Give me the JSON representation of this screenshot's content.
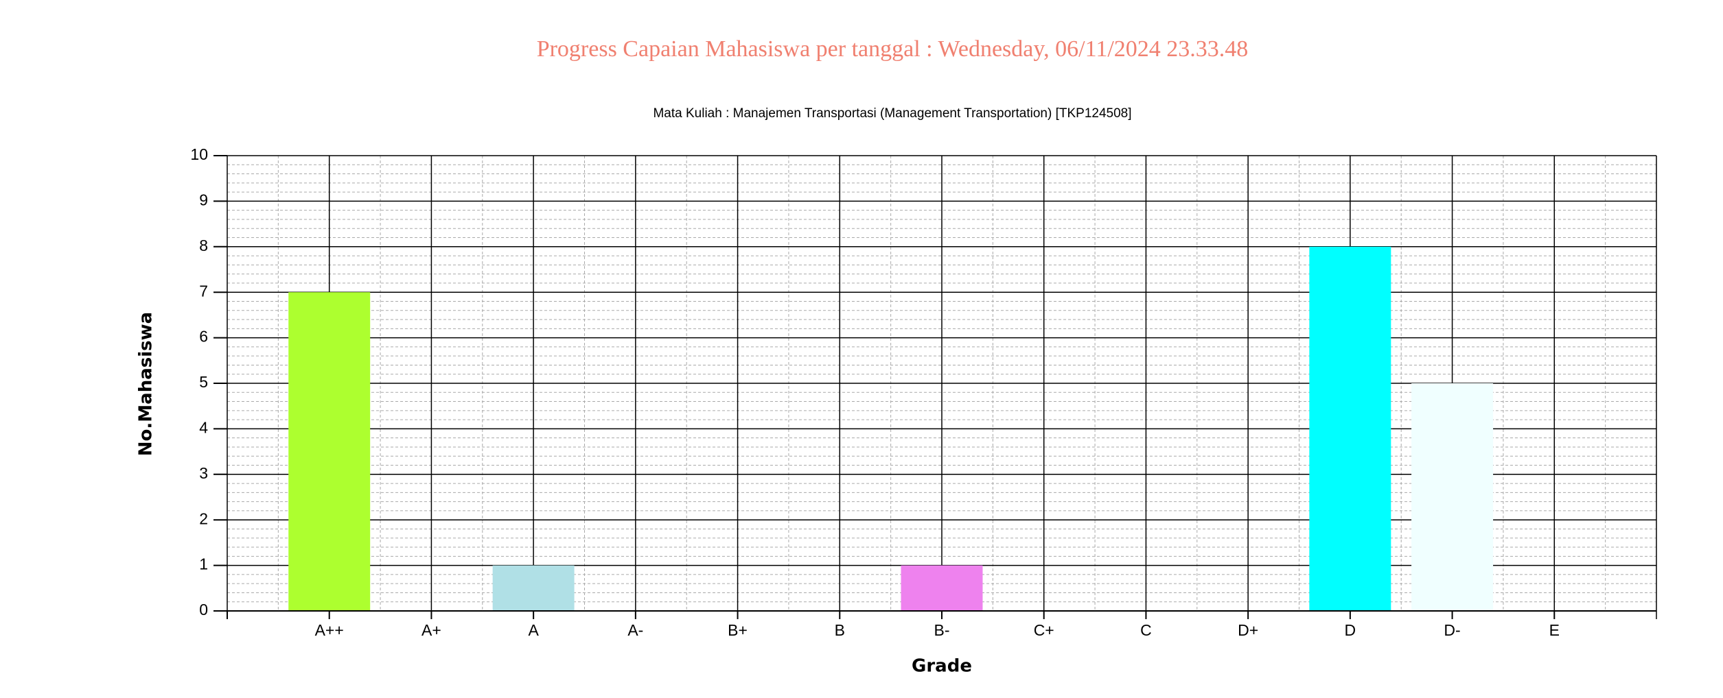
{
  "chart_data": {
    "type": "bar",
    "title": "Progress Capaian Mahasiswa per tanggal : Wednesday, 06/11/2024 23.33.48",
    "subtitle": "Mata Kuliah : Manajemen Transportasi (Management Transportation) [TKP124508]",
    "x_label": "Grade",
    "y_label": "No.Mahasiswa",
    "categories": [
      "A++",
      "A+",
      "A",
      "A-",
      "B+",
      "B",
      "B-",
      "C+",
      "C",
      "D+",
      "D",
      "D-",
      "E"
    ],
    "values": [
      7,
      0,
      1,
      0,
      0,
      0,
      1,
      0,
      0,
      0,
      8,
      5,
      0
    ],
    "colors": [
      "#adff2f",
      "#b0e0e6",
      "#b0e0e6",
      "#b0e0e6",
      "#ee82ee",
      "#ee82ee",
      "#ee82ee",
      "#00ffff",
      "#00ffff",
      "#00ffff",
      "#00ffff",
      "#f0ffff",
      "#f0ffff"
    ],
    "ylim": [
      0,
      10
    ],
    "yticks": [
      0,
      1,
      2,
      3,
      4,
      5,
      6,
      7,
      8,
      9,
      10
    ],
    "grid": true
  }
}
